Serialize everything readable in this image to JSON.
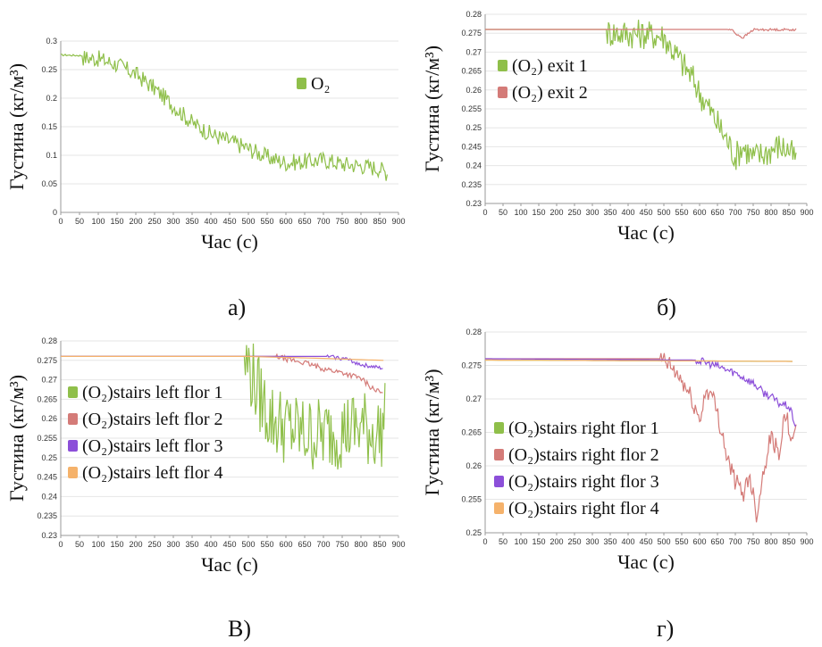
{
  "captions": [
    "а)",
    "б)",
    "В)",
    "г)"
  ],
  "colors": {
    "o2": "#8fbf4a",
    "exit2": "#d47b78",
    "purple": "#8c4fd9",
    "orange": "#f5b26b"
  },
  "chart_data": [
    {
      "type": "line",
      "ylabel": "Густина (кг/м³)",
      "xlabel": "Час (с)",
      "xlim": [
        0,
        900
      ],
      "ylim": [
        0,
        0.3
      ],
      "xticks": [
        "0",
        "50",
        "100",
        "150",
        "200",
        "250",
        "300",
        "350",
        "400",
        "450",
        "500",
        "550",
        "600",
        "650",
        "700",
        "750",
        "800",
        "850",
        "900"
      ],
      "yticks": [
        "0",
        "0.05",
        "0.1",
        "0.15",
        "0.2",
        "0.25",
        "0.3"
      ],
      "legend": "inside-right",
      "series": [
        {
          "name": "O₂",
          "color": "#8fbf4a",
          "x": [
            0,
            50,
            100,
            150,
            200,
            250,
            300,
            350,
            400,
            450,
            500,
            550,
            600,
            650,
            700,
            750,
            800,
            850,
            870
          ],
          "y": [
            0.276,
            0.275,
            0.272,
            0.262,
            0.245,
            0.22,
            0.19,
            0.16,
            0.14,
            0.128,
            0.115,
            0.1,
            0.09,
            0.092,
            0.095,
            0.088,
            0.085,
            0.08,
            0.072
          ],
          "noise": 0.015
        }
      ]
    },
    {
      "type": "line",
      "ylabel": "Густина (кг/м³)",
      "xlabel": "Час (с)",
      "xlim": [
        0,
        900
      ],
      "ylim": [
        0.23,
        0.28
      ],
      "xticks": [
        "0",
        "50",
        "100",
        "150",
        "200",
        "250",
        "300",
        "350",
        "400",
        "450",
        "500",
        "550",
        "600",
        "650",
        "700",
        "750",
        "800",
        "850",
        "900"
      ],
      "yticks": [
        "0.23",
        "0.235",
        "0.24",
        "0.245",
        "0.25",
        "0.255",
        "0.26",
        "0.265",
        "0.27",
        "0.275",
        "0.28"
      ],
      "legend": "inside-left",
      "series": [
        {
          "name": "(O₂) exit 1",
          "color": "#8fbf4a",
          "x": [
            0,
            350,
            450,
            500,
            520,
            550,
            580,
            600,
            620,
            650,
            680,
            700,
            720,
            750,
            780,
            800,
            820,
            850,
            870
          ],
          "y": [
            0.276,
            0.276,
            0.2755,
            0.275,
            0.272,
            0.268,
            0.264,
            0.26,
            0.257,
            0.252,
            0.247,
            0.243,
            0.246,
            0.243,
            0.244,
            0.245,
            0.246,
            0.245,
            0.242
          ],
          "noise": 0.004
        },
        {
          "name": "(O₂) exit 2",
          "color": "#d47b78",
          "x": [
            0,
            690,
            700,
            710,
            720,
            730,
            740,
            750,
            760,
            870
          ],
          "y": [
            0.276,
            0.276,
            0.275,
            0.2745,
            0.2738,
            0.2745,
            0.2752,
            0.276,
            0.276,
            0.276
          ],
          "noise": 0.0003
        }
      ]
    },
    {
      "type": "line",
      "ylabel": "Густина (кг/м³)",
      "xlabel": "Час (с)",
      "xlim": [
        0,
        900
      ],
      "ylim": [
        0.23,
        0.28
      ],
      "xticks": [
        "0",
        "50",
        "100",
        "150",
        "200",
        "250",
        "300",
        "350",
        "400",
        "450",
        "500",
        "550",
        "600",
        "650",
        "700",
        "750",
        "800",
        "850",
        "900"
      ],
      "yticks": [
        "0.23",
        "0.235",
        "0.24",
        "0.245",
        "0.25",
        "0.255",
        "0.26",
        "0.265",
        "0.27",
        "0.275",
        "0.28"
      ],
      "legend": "inside-left",
      "series": [
        {
          "name": "(O₂)stairs left flor 1",
          "color": "#8fbf4a",
          "x": [
            0,
            500,
            510,
            530,
            560,
            600,
            650,
            700,
            750,
            800,
            850,
            865
          ],
          "y": [
            0.276,
            0.276,
            0.273,
            0.268,
            0.262,
            0.26,
            0.258,
            0.258,
            0.259,
            0.26,
            0.258,
            0.262
          ],
          "noise": 0.01
        },
        {
          "name": "(O₂)stairs left flor 2",
          "color": "#d47b78",
          "x": [
            0,
            580,
            600,
            650,
            700,
            750,
            800,
            830,
            860
          ],
          "y": [
            0.276,
            0.276,
            0.2755,
            0.2745,
            0.273,
            0.272,
            0.2705,
            0.268,
            0.2665
          ],
          "noise": 0.0007
        },
        {
          "name": "(O₂)stairs left flor 3",
          "color": "#8c4fd9",
          "x": [
            0,
            720,
            760,
            800,
            830,
            860
          ],
          "y": [
            0.276,
            0.276,
            0.2755,
            0.274,
            0.2735,
            0.273
          ],
          "noise": 0.0005
        },
        {
          "name": "(O₂)stairs left flor 4",
          "color": "#f5b26b",
          "x": [
            0,
            500,
            700,
            860
          ],
          "y": [
            0.276,
            0.276,
            0.2755,
            0.275
          ],
          "noise": 0
        }
      ]
    },
    {
      "type": "line",
      "ylabel": "Густина (кг/м³)",
      "xlabel": "Час (с)",
      "xlim": [
        0,
        900
      ],
      "ylim": [
        0.25,
        0.28
      ],
      "xticks": [
        "0",
        "50",
        "100",
        "150",
        "200",
        "250",
        "300",
        "350",
        "400",
        "450",
        "500",
        "550",
        "600",
        "650",
        "700",
        "750",
        "800",
        "850",
        "900"
      ],
      "yticks": [
        "0.25",
        "0.255",
        "0.26",
        "0.265",
        "0.27",
        "0.275",
        "0.28"
      ],
      "legend": "inside-left",
      "series": [
        {
          "name": "(O₂)stairs right flor 1",
          "color": "#8fbf4a",
          "x": [
            0,
            500,
            870
          ],
          "y": [
            0.2758,
            0.2757,
            0.2756
          ],
          "noise": 0
        },
        {
          "name": "(O₂)stairs right flor 2",
          "color": "#d47b78",
          "x": [
            0,
            500,
            520,
            550,
            580,
            600,
            620,
            640,
            660,
            680,
            700,
            720,
            740,
            760,
            780,
            800,
            820,
            840,
            860,
            870
          ],
          "y": [
            0.276,
            0.276,
            0.275,
            0.273,
            0.27,
            0.267,
            0.272,
            0.27,
            0.266,
            0.261,
            0.258,
            0.256,
            0.259,
            0.253,
            0.26,
            0.265,
            0.262,
            0.268,
            0.264,
            0.265
          ],
          "noise": 0.0015
        },
        {
          "name": "(O₂)stairs right flor 3",
          "color": "#8c4fd9",
          "x": [
            0,
            600,
            650,
            700,
            750,
            780,
            800,
            820,
            850,
            870
          ],
          "y": [
            0.276,
            0.2758,
            0.275,
            0.274,
            0.2725,
            0.271,
            0.2705,
            0.2695,
            0.269,
            0.266
          ],
          "noise": 0.0006
        },
        {
          "name": "(O₂)stairs right flor 4",
          "color": "#f5b26b",
          "x": [
            0,
            500,
            870
          ],
          "y": [
            0.2758,
            0.2757,
            0.2756
          ],
          "noise": 0
        }
      ]
    }
  ]
}
